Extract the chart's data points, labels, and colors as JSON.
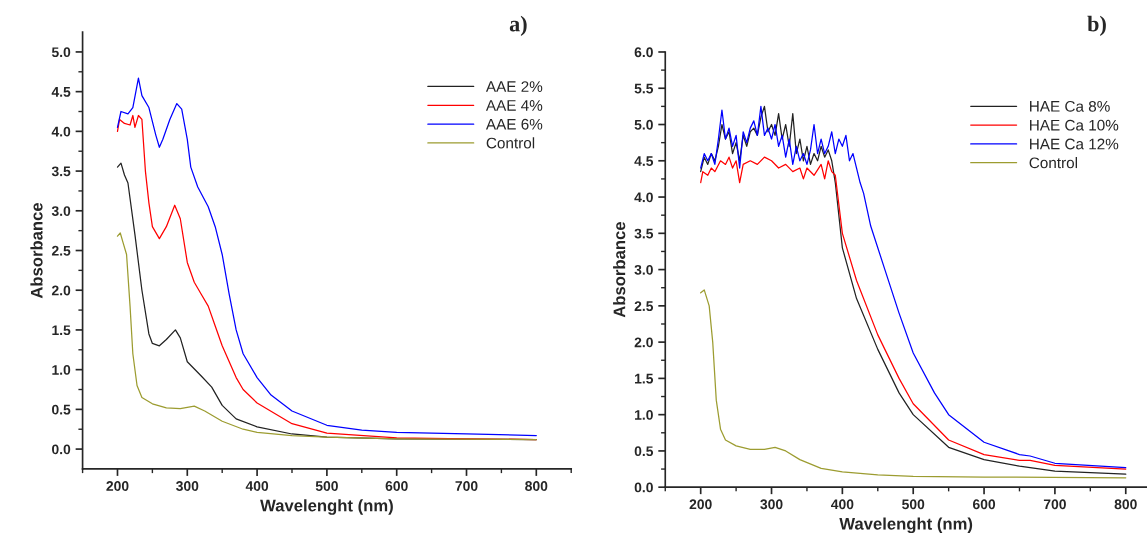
{
  "chart_data": [
    {
      "type": "line",
      "xlabel": "Wavelenght (nm)",
      "ylabel": "Absorbance",
      "annotations": [
        "a)"
      ],
      "legend": "top right",
      "grid": false,
      "xlim": [
        150,
        850
      ],
      "xticks": [
        200,
        300,
        400,
        500,
        600,
        700,
        800
      ],
      "ylim": [
        -0.25,
        5.25
      ],
      "yticks": [
        {
          "value": 0,
          "label": "0.0"
        },
        0.5,
        {
          "value": 1,
          "label": "1.0"
        },
        1.5,
        {
          "value": 2,
          "label": "2.0"
        },
        2.5,
        {
          "value": 3,
          "label": "3.0"
        },
        3.5,
        {
          "value": 4,
          "label": "4.0"
        },
        4.5,
        {
          "value": 5,
          "label": "5.0"
        }
      ],
      "series": [
        {
          "name": "AAE 2%",
          "color": "#222222",
          "x": [
            200,
            205,
            210,
            215,
            225,
            235,
            245,
            250,
            260,
            270,
            283,
            290,
            300,
            320,
            335,
            350,
            370,
            400,
            450,
            500,
            600,
            800
          ],
          "values": [
            3.55,
            3.6,
            3.45,
            3.35,
            2.7,
            2.0,
            1.45,
            1.33,
            1.3,
            1.38,
            1.5,
            1.4,
            1.1,
            0.92,
            0.78,
            0.55,
            0.38,
            0.28,
            0.19,
            0.15,
            0.13,
            0.12
          ]
        },
        {
          "name": "AAE 4%",
          "color": "#ff0000",
          "x": [
            200,
            203,
            210,
            218,
            222,
            225,
            230,
            235,
            240,
            245,
            250,
            260,
            270,
            282,
            290,
            300,
            310,
            320,
            330,
            340,
            350,
            370,
            380,
            400,
            450,
            500,
            600,
            700,
            800
          ],
          "values": [
            4.0,
            4.15,
            4.1,
            4.08,
            4.2,
            4.05,
            4.2,
            4.15,
            3.5,
            3.1,
            2.8,
            2.65,
            2.8,
            3.07,
            2.9,
            2.35,
            2.1,
            1.95,
            1.8,
            1.55,
            1.3,
            0.9,
            0.75,
            0.58,
            0.32,
            0.2,
            0.14,
            0.13,
            0.12
          ]
        },
        {
          "name": "AAE 6%",
          "color": "#0000ff",
          "x": [
            200,
            205,
            215,
            222,
            230,
            235,
            245,
            255,
            260,
            265,
            275,
            285,
            292,
            300,
            305,
            315,
            330,
            340,
            350,
            360,
            370,
            380,
            400,
            420,
            450,
            500,
            550,
            600,
            700,
            800
          ],
          "values": [
            4.05,
            4.25,
            4.22,
            4.3,
            4.67,
            4.45,
            4.3,
            3.95,
            3.8,
            3.9,
            4.15,
            4.35,
            4.28,
            3.9,
            3.55,
            3.3,
            3.05,
            2.8,
            2.45,
            1.95,
            1.5,
            1.2,
            0.9,
            0.68,
            0.48,
            0.3,
            0.24,
            0.21,
            0.19,
            0.17
          ]
        },
        {
          "name": "Control",
          "color": "#9c9c30",
          "x": [
            200,
            204,
            208,
            213,
            218,
            222,
            228,
            235,
            250,
            270,
            290,
            310,
            325,
            350,
            380,
            400,
            450,
            500,
            600,
            800
          ],
          "values": [
            2.68,
            2.72,
            2.6,
            2.45,
            1.8,
            1.2,
            0.8,
            0.65,
            0.57,
            0.52,
            0.51,
            0.54,
            0.48,
            0.35,
            0.25,
            0.21,
            0.17,
            0.15,
            0.13,
            0.12
          ]
        }
      ]
    },
    {
      "type": "line",
      "xlabel": "Wavelenght (nm)",
      "ylabel": "Absorbance",
      "annotations": [
        "b)"
      ],
      "legend": "top right",
      "grid": false,
      "xlim": [
        150,
        830
      ],
      "xticks": [
        200,
        300,
        400,
        500,
        600,
        700,
        800
      ],
      "ylim": [
        0,
        6
      ],
      "yticks": [
        {
          "value": 0,
          "label": "0.0"
        },
        0.5,
        {
          "value": 1,
          "label": "1.0"
        },
        1.5,
        {
          "value": 2,
          "label": "2.0"
        },
        2.5,
        {
          "value": 3,
          "label": "3.0"
        },
        3.5,
        {
          "value": 4,
          "label": "4.0"
        },
        4.5,
        {
          "value": 5,
          "label": "5.0"
        },
        5.5,
        {
          "value": 6,
          "label": "6.0"
        }
      ],
      "series": [
        {
          "name": "HAE Ca 8%",
          "color": "#222222",
          "x": [
            200,
            205,
            210,
            215,
            220,
            225,
            230,
            235,
            240,
            245,
            250,
            255,
            260,
            265,
            270,
            275,
            280,
            285,
            290,
            295,
            300,
            305,
            310,
            315,
            320,
            325,
            330,
            335,
            340,
            345,
            350,
            355,
            360,
            365,
            370,
            375,
            380,
            385,
            390,
            400,
            420,
            450,
            480,
            500,
            550,
            600,
            650,
            665,
            700,
            800
          ],
          "values": [
            4.35,
            4.55,
            4.45,
            4.6,
            4.5,
            4.7,
            5.0,
            4.8,
            4.9,
            4.6,
            4.75,
            4.5,
            4.85,
            4.7,
            4.9,
            4.95,
            4.85,
            5.1,
            5.25,
            4.9,
            5.0,
            4.85,
            5.15,
            4.8,
            5.0,
            4.7,
            5.15,
            4.6,
            4.8,
            4.5,
            4.7,
            4.45,
            4.6,
            4.5,
            4.7,
            4.55,
            4.65,
            4.5,
            4.2,
            3.3,
            2.6,
            1.9,
            1.3,
            1.0,
            0.55,
            0.38,
            0.29,
            0.27,
            0.22,
            0.18
          ]
        },
        {
          "name": "HAE Ca 10%",
          "color": "#ff0000",
          "x": [
            200,
            203,
            210,
            215,
            220,
            228,
            235,
            240,
            245,
            250,
            255,
            260,
            270,
            280,
            290,
            300,
            310,
            320,
            330,
            340,
            345,
            350,
            360,
            370,
            375,
            380,
            385,
            390,
            400,
            420,
            450,
            480,
            500,
            550,
            600,
            650,
            665,
            700,
            800
          ],
          "values": [
            4.2,
            4.35,
            4.3,
            4.4,
            4.35,
            4.5,
            4.45,
            4.55,
            4.4,
            4.5,
            4.2,
            4.45,
            4.5,
            4.45,
            4.55,
            4.5,
            4.4,
            4.45,
            4.35,
            4.4,
            4.25,
            4.4,
            4.3,
            4.45,
            4.25,
            4.5,
            4.35,
            4.3,
            3.5,
            2.85,
            2.1,
            1.5,
            1.15,
            0.65,
            0.45,
            0.37,
            0.37,
            0.3,
            0.25
          ]
        },
        {
          "name": "HAE Ca 12%",
          "color": "#0000ff",
          "x": [
            200,
            205,
            210,
            215,
            220,
            225,
            230,
            235,
            240,
            245,
            250,
            255,
            260,
            265,
            270,
            275,
            280,
            285,
            290,
            295,
            300,
            305,
            310,
            315,
            320,
            325,
            330,
            335,
            340,
            345,
            350,
            355,
            360,
            365,
            370,
            375,
            380,
            385,
            390,
            395,
            400,
            405,
            410,
            415,
            420,
            425,
            430,
            440,
            460,
            480,
            500,
            530,
            550,
            600,
            650,
            665,
            700,
            800
          ],
          "values": [
            4.4,
            4.6,
            4.5,
            4.6,
            4.45,
            4.8,
            5.2,
            4.8,
            4.95,
            4.7,
            4.85,
            4.4,
            4.9,
            4.75,
            4.95,
            5.05,
            4.85,
            5.25,
            4.85,
            4.95,
            4.8,
            5.0,
            4.7,
            4.85,
            4.55,
            4.8,
            4.45,
            4.7,
            4.5,
            4.6,
            4.45,
            4.65,
            5.0,
            4.6,
            4.8,
            4.6,
            4.7,
            4.9,
            4.6,
            4.8,
            4.7,
            4.85,
            4.5,
            4.6,
            4.4,
            4.2,
            4.05,
            3.6,
            3.0,
            2.4,
            1.85,
            1.3,
            1.0,
            0.62,
            0.45,
            0.43,
            0.33,
            0.27
          ]
        },
        {
          "name": "Control",
          "color": "#9c9c30",
          "x": [
            200,
            205,
            212,
            217,
            222,
            228,
            235,
            250,
            270,
            290,
            305,
            320,
            340,
            370,
            400,
            450,
            500,
            600,
            800
          ],
          "values": [
            2.68,
            2.72,
            2.5,
            2.0,
            1.2,
            0.8,
            0.65,
            0.57,
            0.52,
            0.52,
            0.55,
            0.5,
            0.38,
            0.26,
            0.21,
            0.17,
            0.15,
            0.14,
            0.13
          ]
        }
      ]
    }
  ]
}
